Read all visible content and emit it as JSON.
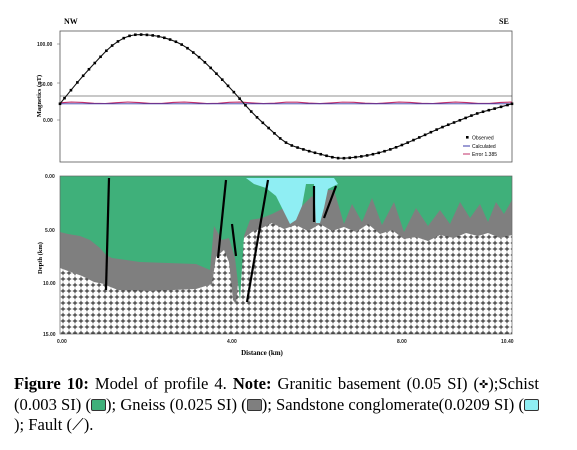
{
  "figure": {
    "direction_left": "NW",
    "direction_right": "SE",
    "top_panel": {
      "ylabel": "Magnetics (nT)",
      "yticks": [
        "100.00",
        "50.00",
        "0.00"
      ],
      "legend": [
        "Observed",
        "Calculated",
        "Error 1.385"
      ],
      "colors": {
        "observed": "#000000",
        "calculated": "#3a3aa8",
        "error": "#c0306a"
      }
    },
    "bottom_panel": {
      "ylabel": "Depth (km)",
      "xlabel": "Distance (km)",
      "yticks": [
        "0.00",
        "5.00",
        "10.00",
        "15.00"
      ],
      "xticks": [
        "0.00",
        "4.00",
        "8.00",
        "10.40"
      ],
      "colors": {
        "schist": "#3fb07a",
        "gneiss": "#7f7f7f",
        "sandstone": "#8feef3",
        "basement": "#ffffff",
        "fault": "#000000"
      }
    }
  },
  "chart_data": {
    "type": "scatter",
    "title": "",
    "xlabel": "",
    "ylabel": "Magnetics (nT)",
    "xlim": [
      0,
      10.4
    ],
    "ylim": [
      -25,
      110
    ],
    "series": [
      {
        "name": "Observed",
        "x": [
          0,
          0.4,
          0.8,
          1.2,
          1.6,
          2.0,
          2.4,
          2.8,
          3.2,
          3.6,
          4.0,
          4.4,
          4.8,
          5.2,
          5.6,
          6.0,
          6.4,
          6.8,
          7.2,
          7.6,
          8.0,
          8.4,
          8.8,
          9.2,
          9.6,
          10.0,
          10.4
        ],
        "y": [
          35,
          57,
          77,
          95,
          105,
          106,
          103,
          96,
          83,
          66,
          47,
          27,
          10,
          -5,
          -12,
          -17,
          -21,
          -20,
          -17,
          -12,
          -5,
          3,
          11,
          18,
          25,
          30,
          35
        ]
      },
      {
        "name": "Calculated",
        "x": [
          0,
          10.4
        ],
        "y": [
          35,
          35
        ]
      },
      {
        "name": "Error 1.385",
        "x": [
          0,
          10.4
        ],
        "y": [
          36,
          36
        ]
      }
    ]
  },
  "caption": {
    "label": "Figure 10:",
    "text1": " Model of profile 4. ",
    "note_label": "Note:",
    "text2": " Granitic basement (0.05 SI) (",
    "text3": ");Schist (0.003 SI) (",
    "text4": "); Gneiss (0.025 SI) (",
    "text5": "); Sandstone conglomerate(0.0209 SI) (",
    "text6": "); Fault (",
    "text7": ").",
    "basement_glyph": "✜",
    "fault_glyph": "⟋"
  }
}
